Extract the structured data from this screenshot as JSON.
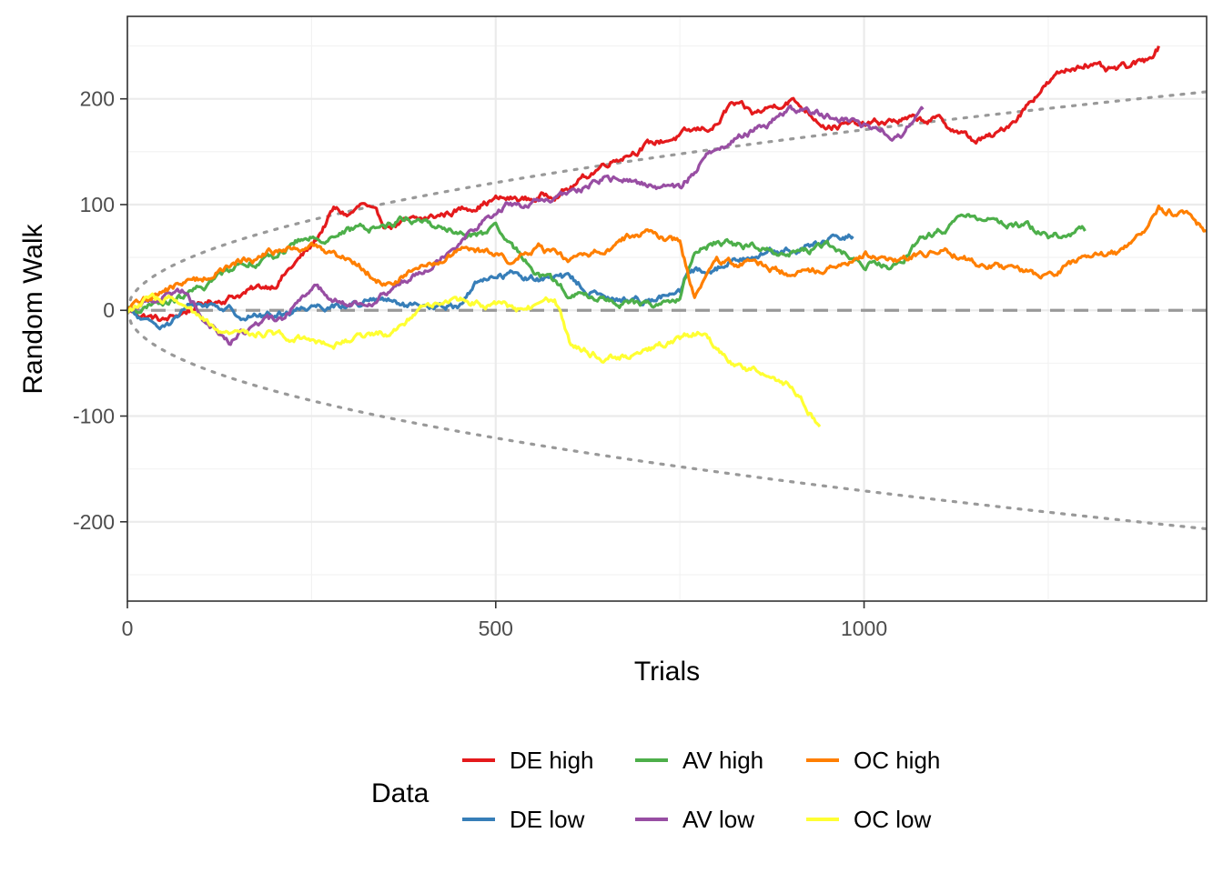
{
  "chart_data": {
    "type": "line",
    "xlabel": "Trials",
    "ylabel": "Random Walk",
    "xlim": [
      0,
      1465
    ],
    "ylim": [
      -275,
      278
    ],
    "x_ticks": [
      0,
      500,
      1000
    ],
    "x_tick_labels": [
      "0",
      "500",
      "1000"
    ],
    "y_ticks": [
      -200,
      -100,
      0,
      100,
      200
    ],
    "y_tick_labels": [
      "-200",
      "-100",
      "0",
      "100",
      "200"
    ],
    "grid": true,
    "theme": "bw",
    "legend": {
      "title": "Data",
      "position": "bottom",
      "layout": "3 columns x 2 rows",
      "entries": [
        {
          "label": "DE high",
          "color": "#E41A1C"
        },
        {
          "label": "DE low",
          "color": "#377EB8"
        },
        {
          "label": "AV high",
          "color": "#4DAF4A"
        },
        {
          "label": "AV low",
          "color": "#984EA3"
        },
        {
          "label": "OC high",
          "color": "#FF7F00"
        },
        {
          "label": "OC low",
          "color": "#FFFF33"
        }
      ]
    },
    "reference_lines": [
      {
        "name": "zero",
        "style": "dashed",
        "color": "#999999",
        "y": 0
      },
      {
        "name": "upper bound",
        "style": "dotted",
        "color": "#999999",
        "formula": "y = 5.4 * sqrt(x)"
      },
      {
        "name": "lower bound",
        "style": "dotted",
        "color": "#999999",
        "formula": "y = -5.4 * sqrt(x)"
      }
    ],
    "series": [
      {
        "name": "DE high",
        "color": "#E41A1C",
        "x_max": 1400,
        "keypoints": [
          [
            0,
            0
          ],
          [
            50,
            -10
          ],
          [
            100,
            5
          ],
          [
            150,
            15
          ],
          [
            200,
            25
          ],
          [
            250,
            60
          ],
          [
            280,
            95
          ],
          [
            300,
            90
          ],
          [
            320,
            100
          ],
          [
            350,
            80
          ],
          [
            400,
            85
          ],
          [
            450,
            95
          ],
          [
            500,
            105
          ],
          [
            550,
            105
          ],
          [
            600,
            115
          ],
          [
            620,
            125
          ],
          [
            650,
            140
          ],
          [
            700,
            155
          ],
          [
            750,
            165
          ],
          [
            800,
            175
          ],
          [
            820,
            195
          ],
          [
            850,
            185
          ],
          [
            900,
            200
          ],
          [
            950,
            175
          ],
          [
            1000,
            175
          ],
          [
            1050,
            180
          ],
          [
            1100,
            180
          ],
          [
            1150,
            160
          ],
          [
            1180,
            165
          ],
          [
            1210,
            185
          ],
          [
            1240,
            210
          ],
          [
            1270,
            225
          ],
          [
            1300,
            235
          ],
          [
            1330,
            225
          ],
          [
            1360,
            230
          ],
          [
            1380,
            235
          ],
          [
            1400,
            250
          ]
        ]
      },
      {
        "name": "DE low",
        "color": "#377EB8",
        "x_max": 985,
        "keypoints": [
          [
            0,
            0
          ],
          [
            30,
            -15
          ],
          [
            60,
            -10
          ],
          [
            90,
            5
          ],
          [
            120,
            5
          ],
          [
            160,
            -5
          ],
          [
            200,
            -5
          ],
          [
            250,
            5
          ],
          [
            300,
            5
          ],
          [
            340,
            10
          ],
          [
            400,
            0
          ],
          [
            450,
            5
          ],
          [
            480,
            30
          ],
          [
            520,
            35
          ],
          [
            550,
            30
          ],
          [
            600,
            30
          ],
          [
            650,
            10
          ],
          [
            700,
            10
          ],
          [
            750,
            15
          ],
          [
            760,
            35
          ],
          [
            800,
            40
          ],
          [
            850,
            55
          ],
          [
            900,
            55
          ],
          [
            950,
            65
          ],
          [
            985,
            70
          ]
        ]
      },
      {
        "name": "AV high",
        "color": "#4DAF4A",
        "x_max": 1300,
        "keypoints": [
          [
            0,
            0
          ],
          [
            50,
            5
          ],
          [
            100,
            20
          ],
          [
            150,
            45
          ],
          [
            200,
            50
          ],
          [
            230,
            65
          ],
          [
            270,
            70
          ],
          [
            300,
            75
          ],
          [
            350,
            80
          ],
          [
            380,
            88
          ],
          [
            420,
            80
          ],
          [
            460,
            70
          ],
          [
            500,
            75
          ],
          [
            520,
            60
          ],
          [
            560,
            35
          ],
          [
            600,
            15
          ],
          [
            650,
            10
          ],
          [
            700,
            5
          ],
          [
            750,
            10
          ],
          [
            770,
            55
          ],
          [
            800,
            65
          ],
          [
            850,
            60
          ],
          [
            900,
            55
          ],
          [
            950,
            60
          ],
          [
            1000,
            45
          ],
          [
            1050,
            40
          ],
          [
            1080,
            70
          ],
          [
            1120,
            80
          ],
          [
            1150,
            90
          ],
          [
            1180,
            85
          ],
          [
            1220,
            80
          ],
          [
            1250,
            70
          ],
          [
            1300,
            75
          ]
        ]
      },
      {
        "name": "AV low",
        "color": "#984EA3",
        "x_max": 1080,
        "keypoints": [
          [
            0,
            0
          ],
          [
            50,
            15
          ],
          [
            80,
            20
          ],
          [
            100,
            -5
          ],
          [
            140,
            -30
          ],
          [
            180,
            -10
          ],
          [
            210,
            -10
          ],
          [
            250,
            25
          ],
          [
            300,
            5
          ],
          [
            350,
            15
          ],
          [
            400,
            40
          ],
          [
            450,
            65
          ],
          [
            480,
            85
          ],
          [
            520,
            100
          ],
          [
            550,
            100
          ],
          [
            580,
            105
          ],
          [
            600,
            110
          ],
          [
            650,
            125
          ],
          [
            700,
            120
          ],
          [
            750,
            115
          ],
          [
            780,
            140
          ],
          [
            800,
            155
          ],
          [
            850,
            170
          ],
          [
            900,
            190
          ],
          [
            950,
            185
          ],
          [
            1000,
            175
          ],
          [
            1050,
            165
          ],
          [
            1080,
            190
          ]
        ]
      },
      {
        "name": "OC high",
        "color": "#FF7F00",
        "x_max": 1465,
        "keypoints": [
          [
            0,
            0
          ],
          [
            50,
            20
          ],
          [
            100,
            30
          ],
          [
            150,
            45
          ],
          [
            200,
            55
          ],
          [
            250,
            60
          ],
          [
            300,
            50
          ],
          [
            350,
            25
          ],
          [
            400,
            40
          ],
          [
            450,
            55
          ],
          [
            500,
            55
          ],
          [
            520,
            45
          ],
          [
            560,
            60
          ],
          [
            600,
            45
          ],
          [
            650,
            60
          ],
          [
            700,
            75
          ],
          [
            750,
            65
          ],
          [
            770,
            10
          ],
          [
            800,
            45
          ],
          [
            850,
            45
          ],
          [
            900,
            35
          ],
          [
            950,
            40
          ],
          [
            1000,
            55
          ],
          [
            1050,
            45
          ],
          [
            1100,
            60
          ],
          [
            1150,
            45
          ],
          [
            1200,
            40
          ],
          [
            1250,
            30
          ],
          [
            1300,
            50
          ],
          [
            1350,
            55
          ],
          [
            1400,
            95
          ],
          [
            1440,
            90
          ],
          [
            1465,
            75
          ]
        ]
      },
      {
        "name": "OC low",
        "color": "#FFFF33",
        "x_max": 940,
        "keypoints": [
          [
            0,
            0
          ],
          [
            30,
            10
          ],
          [
            60,
            10
          ],
          [
            100,
            -10
          ],
          [
            130,
            -25
          ],
          [
            180,
            -20
          ],
          [
            230,
            -25
          ],
          [
            280,
            -30
          ],
          [
            320,
            -25
          ],
          [
            360,
            -20
          ],
          [
            400,
            5
          ],
          [
            440,
            10
          ],
          [
            500,
            5
          ],
          [
            540,
            0
          ],
          [
            580,
            10
          ],
          [
            600,
            -30
          ],
          [
            650,
            -45
          ],
          [
            700,
            -40
          ],
          [
            740,
            -30
          ],
          [
            780,
            -20
          ],
          [
            820,
            -50
          ],
          [
            860,
            -60
          ],
          [
            900,
            -70
          ],
          [
            940,
            -110
          ]
        ]
      }
    ]
  }
}
